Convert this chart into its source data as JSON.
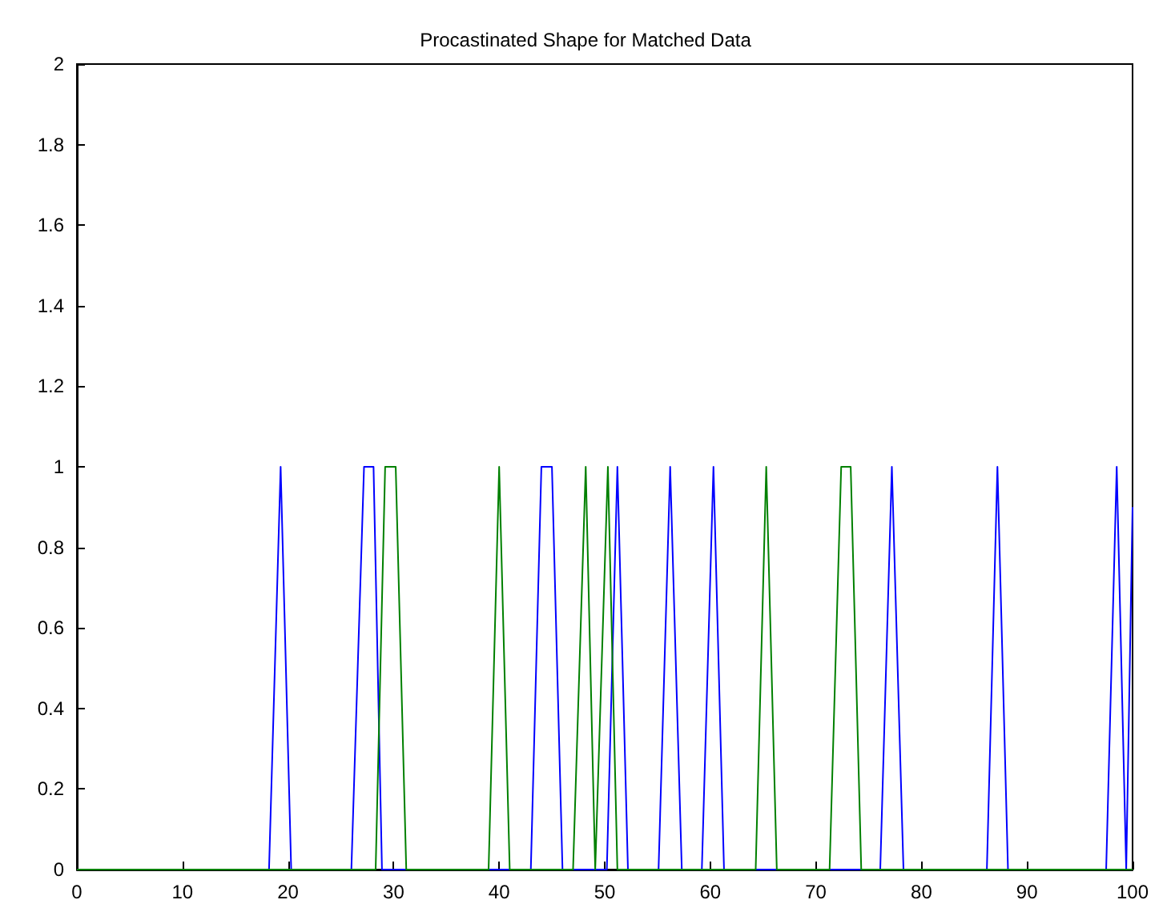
{
  "chart_data": {
    "type": "line",
    "title": "Procastinated Shape for Matched Data",
    "series": [
      {
        "color": "#0000ff",
        "x": [
          0,
          18.2,
          19.3,
          20.3,
          26,
          27.2,
          28.1,
          28.9,
          43,
          44,
          45,
          46,
          50.2,
          51.2,
          52.2,
          55.1,
          56.2,
          57.3,
          59.2,
          60.3,
          61.3,
          76.1,
          77.2,
          78.3,
          86.2,
          87.2,
          88.2,
          97.5,
          98.5,
          99.4,
          100
        ],
        "values": [
          0,
          0,
          1,
          0,
          0,
          1,
          1,
          0,
          0,
          1,
          1,
          0,
          0,
          1,
          0,
          0,
          1,
          0,
          0,
          1,
          0,
          0,
          1,
          0,
          0,
          1,
          0,
          0,
          1,
          0,
          0.9
        ]
      },
      {
        "color": "#008000",
        "x": [
          0,
          28.3,
          29.2,
          30.2,
          31.2,
          39,
          40,
          41,
          47,
          48.2,
          49.1,
          50.3,
          51.2,
          64.3,
          65.3,
          66.3,
          71.3,
          72.4,
          73.3,
          74.3,
          100
        ],
        "values": [
          0,
          0,
          1,
          1,
          0,
          0,
          1,
          0,
          0,
          1,
          0,
          1,
          0,
          0,
          1,
          0,
          0,
          1,
          1,
          0,
          0
        ]
      }
    ],
    "xlim": [
      0,
      100
    ],
    "xticks": [
      0,
      10,
      20,
      30,
      40,
      50,
      60,
      70,
      80,
      90,
      100
    ],
    "ylim": [
      0,
      2
    ],
    "yticks": [
      0,
      0.2,
      0.4,
      0.6,
      0.8,
      1,
      1.2,
      1.4,
      1.6,
      1.8,
      2
    ],
    "grid": false,
    "marker": "none",
    "line_style": "solid"
  }
}
